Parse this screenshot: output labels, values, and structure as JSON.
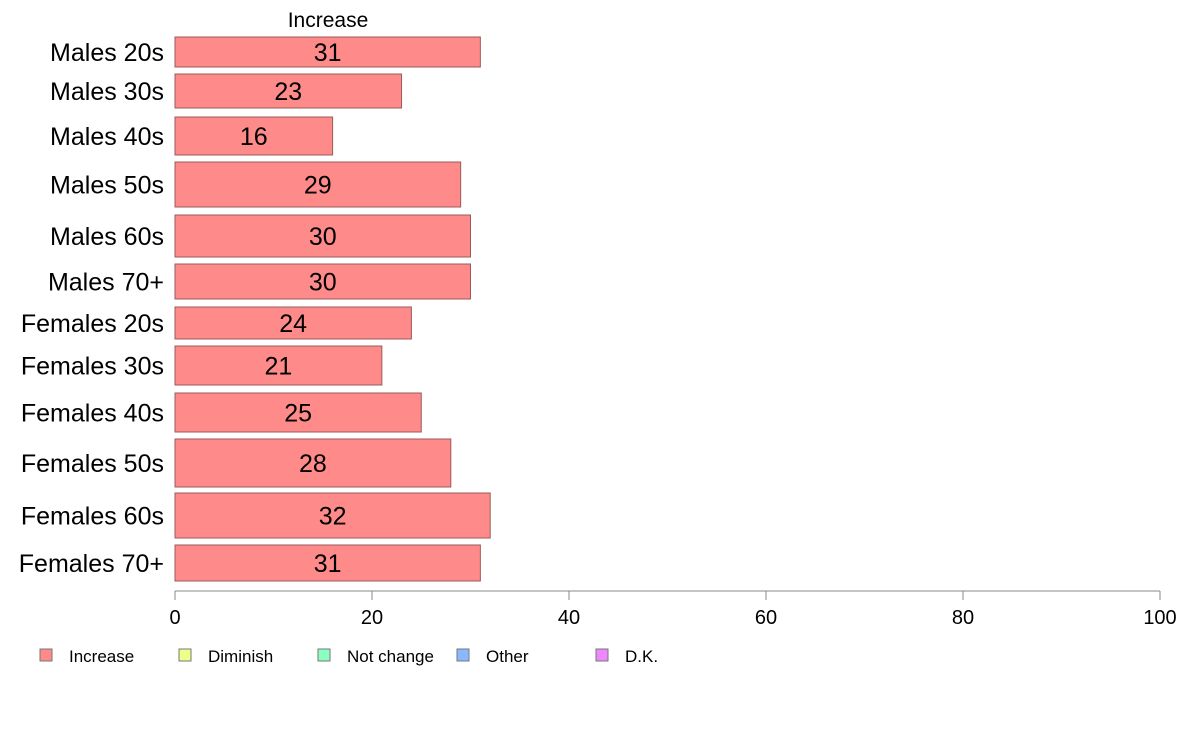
{
  "chart_data": {
    "type": "bar",
    "orientation": "horizontal",
    "title": "",
    "xlabel": "",
    "ylabel": "",
    "series_header": "Increase",
    "categories": [
      "Males 20s",
      "Males 30s",
      "Males 40s",
      "Males 50s",
      "Males 60s",
      "Males 70+",
      "Females 20s",
      "Females 30s",
      "Females 40s",
      "Females 50s",
      "Females 60s",
      "Females 70+"
    ],
    "series": [
      {
        "name": "Increase",
        "values": [
          31,
          23,
          16,
          29,
          30,
          30,
          24,
          21,
          25,
          28,
          32,
          31
        ]
      }
    ],
    "xlim": [
      0,
      100
    ],
    "xticks": [
      0,
      20,
      40,
      60,
      80,
      100
    ],
    "grid": false,
    "legend_placement": "bottom-left",
    "legend": [
      {
        "label": "Increase",
        "color": "#ff8a8a"
      },
      {
        "label": "Diminish",
        "color": "#eeff8a"
      },
      {
        "label": "Not change",
        "color": "#8affc0"
      },
      {
        "label": "Other",
        "color": "#8ab8ff"
      },
      {
        "label": "D.K.",
        "color": "#ee88ff"
      }
    ],
    "colors": {
      "bar_fill": "#ff8a8a",
      "bar_stroke": "#9a5a5a",
      "axis": "#888888"
    }
  }
}
